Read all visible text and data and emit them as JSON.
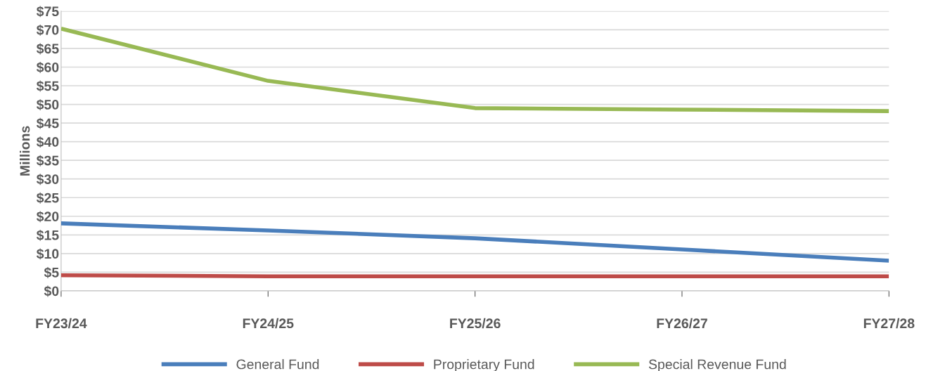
{
  "chart_data": {
    "type": "line",
    "ylabel": "Millions",
    "categories": [
      "FY23/24",
      "FY24/25",
      "FY25/26",
      "FY26/27",
      "FY27/28"
    ],
    "series": [
      {
        "name": "General Fund",
        "color": "#4a7ebb",
        "values": [
          18.1,
          16.2,
          14.1,
          11.1,
          8.1
        ]
      },
      {
        "name": "Proprietary Fund",
        "color": "#be4b48",
        "values": [
          4.2,
          3.9,
          3.9,
          3.9,
          3.9
        ]
      },
      {
        "name": "Special Revenue Fund",
        "color": "#98b954",
        "values": [
          70.3,
          56.3,
          49.0,
          48.6,
          48.2
        ]
      }
    ],
    "ylim": [
      0,
      75
    ],
    "yticks": [
      {
        "value": 0,
        "label": "$0"
      },
      {
        "value": 5,
        "label": "$5"
      },
      {
        "value": 10,
        "label": "$10"
      },
      {
        "value": 15,
        "label": "$15"
      },
      {
        "value": 20,
        "label": "$20"
      },
      {
        "value": 25,
        "label": "$25"
      },
      {
        "value": 30,
        "label": "$30"
      },
      {
        "value": 35,
        "label": "$35"
      },
      {
        "value": 40,
        "label": "$40"
      },
      {
        "value": 45,
        "label": "$45"
      },
      {
        "value": 50,
        "label": "$50"
      },
      {
        "value": 55,
        "label": "$55"
      },
      {
        "value": 60,
        "label": "$60"
      },
      {
        "value": 65,
        "label": "$65"
      },
      {
        "value": 70,
        "label": "$70"
      },
      {
        "value": 75,
        "label": "$75"
      }
    ],
    "grid": "y",
    "legend": "bottom",
    "marker": "none",
    "line_style": "solid"
  }
}
